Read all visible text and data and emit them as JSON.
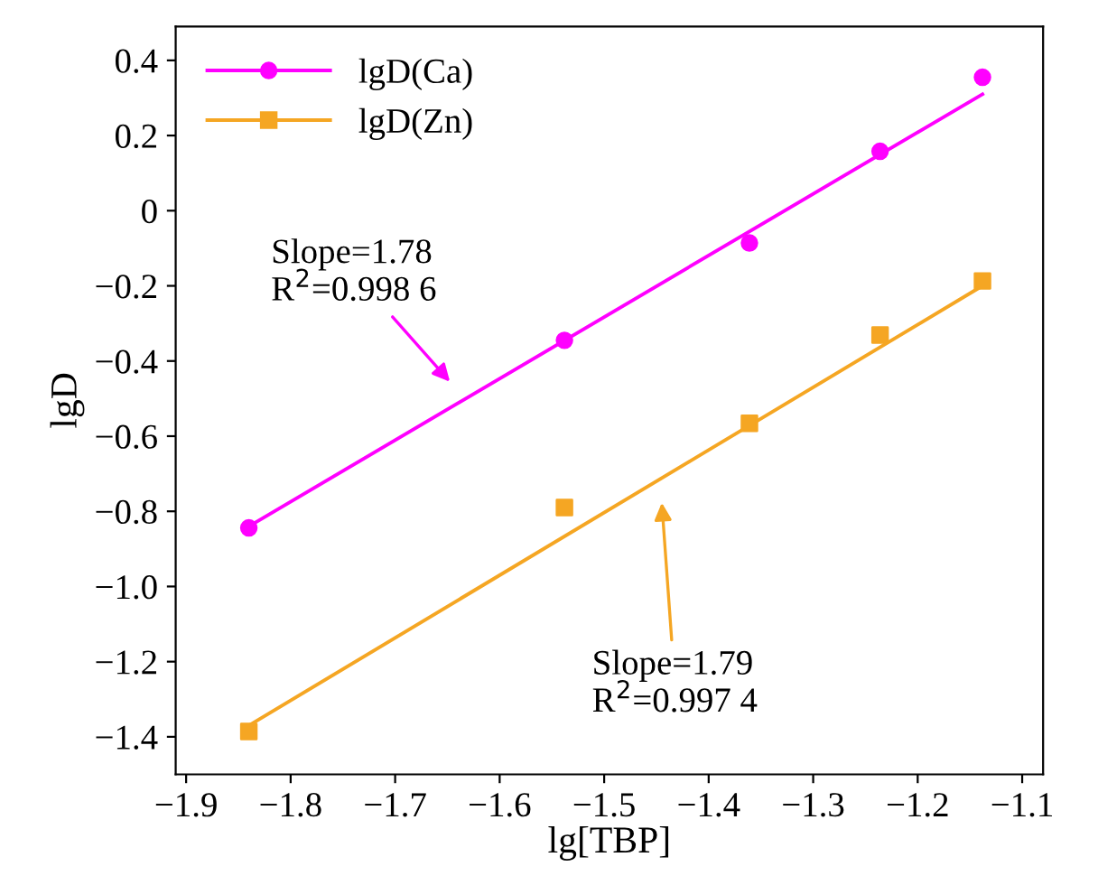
{
  "chart_data": {
    "type": "scatter",
    "xlabel": "lg[TBP]",
    "ylabel": "lgD",
    "series": [
      {
        "name": "lgD(Ca)",
        "color": "#ff00ff",
        "marker": "circle",
        "x": [
          -1.84,
          -1.538,
          -1.361,
          -1.236,
          -1.138
        ],
        "values": [
          -0.844,
          -0.345,
          -0.086,
          0.158,
          0.355
        ]
      },
      {
        "name": "lgD(Zn)",
        "color": "#f5a623",
        "marker": "square",
        "x": [
          -1.84,
          -1.538,
          -1.361,
          -1.236,
          -1.138
        ],
        "values": [
          -1.386,
          -0.79,
          -0.566,
          -0.331,
          -0.187
        ]
      },
      {
        "type": "line",
        "color": "#ff00ff",
        "marker": "none",
        "x": [
          -1.84,
          -1.138
        ],
        "values": [
          -0.84,
          0.31
        ]
      },
      {
        "type": "line",
        "color": "#f5a623",
        "marker": "none",
        "x": [
          -1.84,
          -1.138
        ],
        "values": [
          -1.37,
          -0.2
        ]
      }
    ],
    "annotations": [
      "Slope=1.78\nR$^{2}$=0.998 6",
      "Slope=1.79\nR$^{2}$=0.997 4"
    ],
    "xlim": [
      -1.91,
      -1.08
    ],
    "ylim": [
      -1.5,
      0.49
    ],
    "xticks": [
      {
        "value": -1.9,
        "label": "−1.9"
      },
      {
        "value": -1.8,
        "label": "−1.8"
      },
      {
        "value": -1.7,
        "label": "−1.7"
      },
      {
        "value": -1.6,
        "label": "−1.6"
      },
      {
        "value": -1.5,
        "label": "−1.5"
      },
      {
        "value": -1.4,
        "label": "−1.4"
      },
      {
        "value": -1.3,
        "label": "−1.3"
      },
      {
        "value": -1.2,
        "label": "−1.2"
      },
      {
        "value": -1.1,
        "label": "−1.1"
      }
    ],
    "yticks": [
      {
        "value": -1.4,
        "label": "−1.4"
      },
      {
        "value": -1.2,
        "label": "−1.2"
      },
      {
        "value": -1.0,
        "label": "−1.0"
      },
      {
        "value": -0.8,
        "label": "−0.8"
      },
      {
        "value": -0.6,
        "label": "−0.6"
      },
      {
        "value": -0.4,
        "label": "−0.4"
      },
      {
        "value": -0.2,
        "label": "−0.2"
      },
      0,
      0.2,
      0.4
    ],
    "legend": "top left"
  }
}
